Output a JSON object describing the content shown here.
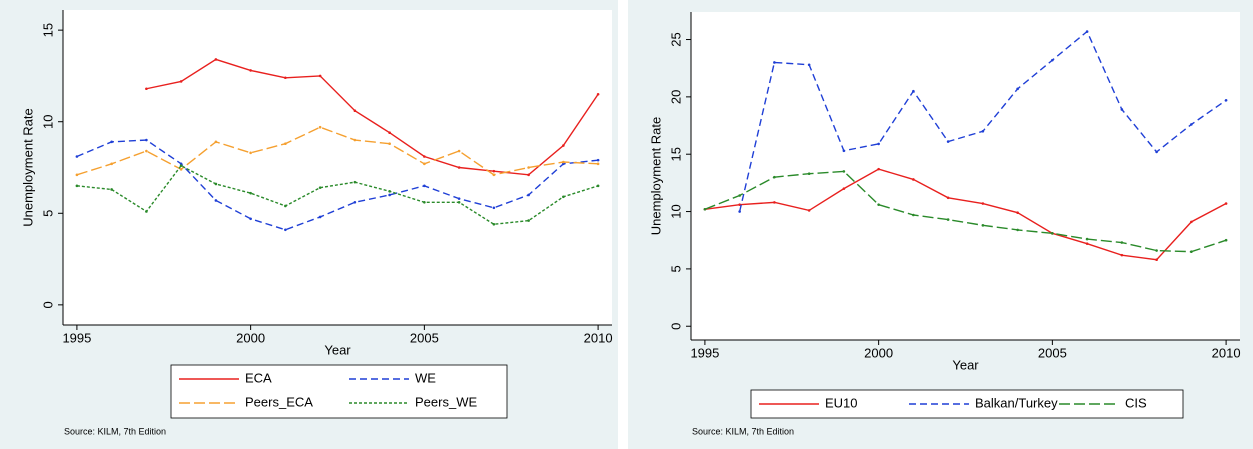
{
  "chart_data": [
    {
      "type": "line",
      "xlabel": "Year",
      "ylabel": "Unemployment Rate",
      "note": "Source: KILM, 7th Edition",
      "x": [
        1995,
        1996,
        1997,
        1998,
        1999,
        2000,
        2001,
        2002,
        2003,
        2004,
        2005,
        2006,
        2007,
        2008,
        2009,
        2010
      ],
      "xlim": [
        1994.6,
        2010.4
      ],
      "ylim": [
        -1.1,
        16.1
      ],
      "xticks": [
        1995,
        2000,
        2005,
        2010
      ],
      "yticks": [
        0,
        5,
        10,
        15
      ],
      "legend": "bottom",
      "series": [
        {
          "name": "ECA",
          "color": "#e8201e",
          "dash": "solid",
          "values": [
            null,
            null,
            11.8,
            12.2,
            13.4,
            12.8,
            12.4,
            12.5,
            10.6,
            9.4,
            8.1,
            7.5,
            7.3,
            7.1,
            8.7,
            11.5
          ]
        },
        {
          "name": "WE",
          "color": "#1f3fd6",
          "dash": "dashed",
          "values": [
            8.1,
            8.9,
            9.0,
            7.7,
            5.7,
            4.7,
            4.1,
            4.8,
            5.6,
            6.0,
            6.5,
            5.8,
            5.3,
            6.0,
            7.7,
            7.9
          ]
        },
        {
          "name": "Peers_ECA",
          "color": "#f5a030",
          "dash": "longdash",
          "values": [
            7.1,
            7.7,
            8.4,
            7.4,
            8.9,
            8.3,
            8.8,
            9.7,
            9.0,
            8.8,
            7.7,
            8.4,
            7.1,
            7.5,
            7.8,
            7.7
          ]
        },
        {
          "name": "Peers_WE",
          "color": "#2a8a2a",
          "dash": "shortdash",
          "values": [
            6.5,
            6.3,
            5.1,
            7.6,
            6.6,
            6.1,
            5.4,
            6.4,
            6.7,
            6.2,
            5.6,
            5.6,
            4.4,
            4.6,
            5.9,
            6.5
          ]
        }
      ]
    },
    {
      "type": "line",
      "xlabel": "Year",
      "ylabel": "Unemployment Rate",
      "note": "Source: KILM, 7th Edition",
      "x": [
        1995,
        1996,
        1997,
        1998,
        1999,
        2000,
        2001,
        2002,
        2003,
        2004,
        2005,
        2006,
        2007,
        2008,
        2009,
        2010
      ],
      "xlim": [
        1994.6,
        2010.4
      ],
      "ylim": [
        -1.2,
        27.4
      ],
      "xticks": [
        1995,
        2000,
        2005,
        2010
      ],
      "yticks": [
        0,
        5,
        10,
        15,
        20,
        25
      ],
      "legend": "bottom",
      "series": [
        {
          "name": "EU10",
          "color": "#e8201e",
          "dash": "solid",
          "values": [
            10.2,
            10.6,
            10.8,
            10.1,
            12.0,
            13.7,
            12.8,
            11.2,
            10.7,
            9.9,
            8.1,
            7.2,
            6.2,
            5.8,
            9.1,
            10.7
          ]
        },
        {
          "name": "Balkan/Turkey",
          "color": "#1f3fd6",
          "dash": "dashed",
          "values": [
            null,
            10.0,
            23.0,
            22.8,
            15.3,
            15.9,
            20.5,
            16.1,
            17.0,
            20.7,
            23.2,
            25.7,
            18.9,
            15.2,
            17.6,
            19.7
          ]
        },
        {
          "name": "CIS",
          "color": "#2a8a2a",
          "dash": "longdash",
          "values": [
            10.2,
            11.4,
            13.0,
            13.3,
            13.5,
            10.6,
            9.7,
            9.3,
            8.8,
            8.4,
            8.1,
            7.6,
            7.3,
            6.6,
            6.5,
            7.5
          ]
        }
      ]
    }
  ]
}
